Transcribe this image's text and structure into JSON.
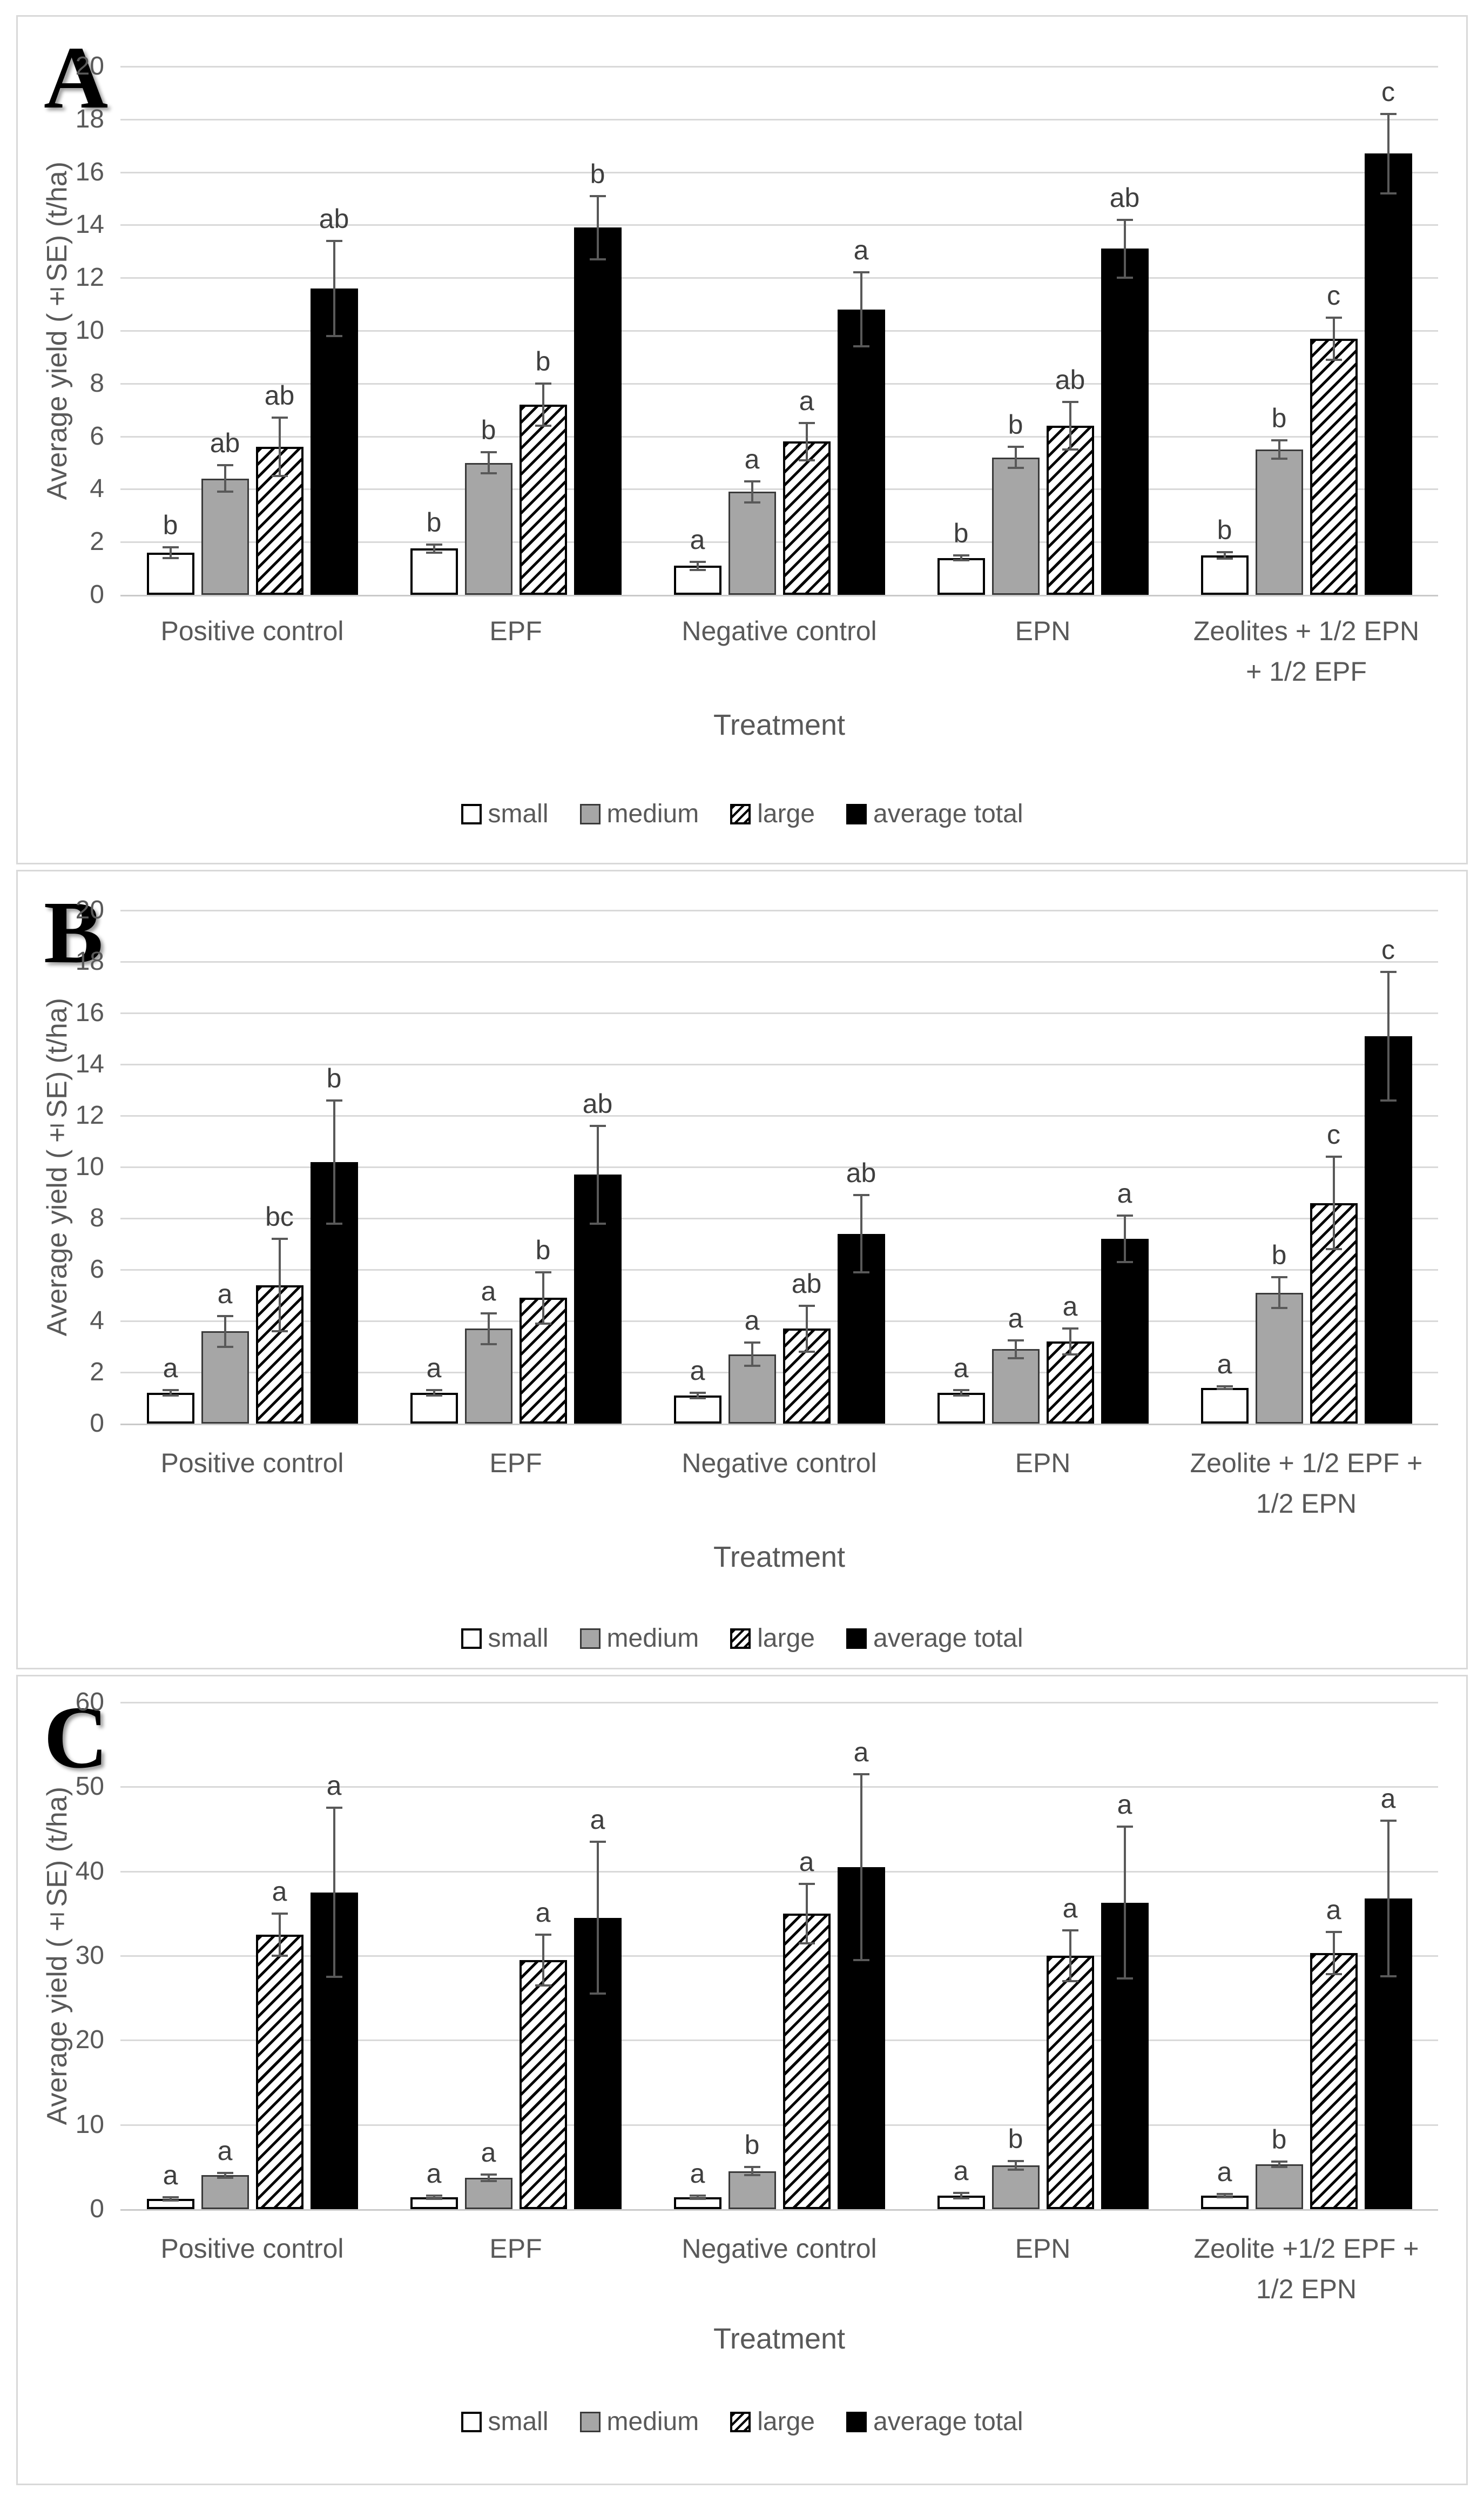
{
  "colors": {
    "bar_small_fill": "#ffffff",
    "bar_medium_fill": "#a6a6a6",
    "bar_large_hatch": "#000000",
    "bar_total_fill": "#000000",
    "gridline": "#d9d9d9",
    "axis_line": "#c9c9c9",
    "text": "#595959",
    "sig_letter": "#3f3f3f",
    "panel_border": "#d9d9d9"
  },
  "chart_data": [
    {
      "type": "bar",
      "panel": "A",
      "ylabel": "Average yield (±SE) (t/ha)",
      "xlabel": "Treatment",
      "ylim": [
        0,
        20
      ],
      "ytick_step": 2,
      "yticks": [
        0,
        2,
        4,
        6,
        8,
        10,
        12,
        14,
        16,
        18,
        20
      ],
      "grid": true,
      "legend_position": "bottom",
      "categories": [
        "Positive control",
        "EPF",
        "Negative control",
        "EPN",
        "Zeolites + 1/2 EPN + 1/2 EPF"
      ],
      "series": [
        {
          "name": "small",
          "values": [
            1.6,
            1.75,
            1.1,
            1.4,
            1.5
          ],
          "errors": [
            0.2,
            0.15,
            0.15,
            0.1,
            0.12
          ],
          "letters": [
            "b",
            "b",
            "a",
            "b",
            "b"
          ]
        },
        {
          "name": "medium",
          "values": [
            4.4,
            5.0,
            3.9,
            5.2,
            5.5
          ],
          "errors": [
            0.5,
            0.4,
            0.4,
            0.4,
            0.35
          ],
          "letters": [
            "ab",
            "b",
            "a",
            "b",
            "b"
          ]
        },
        {
          "name": "large",
          "values": [
            5.6,
            7.2,
            5.8,
            6.4,
            9.7
          ],
          "errors": [
            1.1,
            0.8,
            0.7,
            0.9,
            0.8
          ],
          "letters": [
            "ab",
            "b",
            "a",
            "ab",
            "c"
          ]
        },
        {
          "name": "average total",
          "values": [
            11.6,
            13.9,
            10.8,
            13.1,
            16.7
          ],
          "errors": [
            1.8,
            1.2,
            1.4,
            1.1,
            1.5
          ],
          "letters": [
            "ab",
            "b",
            "a",
            "ab",
            "c"
          ]
        }
      ]
    },
    {
      "type": "bar",
      "panel": "B",
      "ylabel": "Average yield (±SE) (t/ha)",
      "xlabel": "Treatment",
      "ylim": [
        0,
        20
      ],
      "ytick_step": 2,
      "yticks": [
        0,
        2,
        4,
        6,
        8,
        10,
        12,
        14,
        16,
        18,
        20
      ],
      "grid": true,
      "legend_position": "bottom",
      "categories": [
        "Positive control",
        "EPF",
        "Negative control",
        "EPN",
        "Zeolite + 1/2 EPF + 1/2 EPN"
      ],
      "series": [
        {
          "name": "small",
          "values": [
            1.2,
            1.2,
            1.1,
            1.2,
            1.4
          ],
          "errors": [
            0.1,
            0.1,
            0.1,
            0.1,
            0.05
          ],
          "letters": [
            "a",
            "a",
            "a",
            "a",
            "a"
          ]
        },
        {
          "name": "medium",
          "values": [
            3.6,
            3.7,
            2.7,
            2.9,
            5.1
          ],
          "errors": [
            0.6,
            0.6,
            0.45,
            0.35,
            0.6
          ],
          "letters": [
            "a",
            "a",
            "a",
            "a",
            "b"
          ]
        },
        {
          "name": "large",
          "values": [
            5.4,
            4.9,
            3.7,
            3.2,
            8.6
          ],
          "errors": [
            1.8,
            1.0,
            0.9,
            0.5,
            1.8
          ],
          "letters": [
            "bc",
            "b",
            "ab",
            "a",
            "c"
          ]
        },
        {
          "name": "average total",
          "values": [
            10.2,
            9.7,
            7.4,
            7.2,
            15.1
          ],
          "errors": [
            2.4,
            1.9,
            1.5,
            0.9,
            2.5
          ],
          "letters": [
            "b",
            "ab",
            "ab",
            "a",
            "c"
          ]
        }
      ]
    },
    {
      "type": "bar",
      "panel": "C",
      "ylabel": "Average yield (±SE) (t/ha)",
      "xlabel": "Treatment",
      "ylim": [
        0,
        60
      ],
      "ytick_step": 10,
      "yticks": [
        0,
        10,
        20,
        30,
        40,
        50,
        60
      ],
      "grid": true,
      "legend_position": "bottom",
      "categories": [
        "Positive control",
        "EPF",
        "Negative control",
        "EPN",
        "Zeolite +1/2 EPF + 1/2 EPN"
      ],
      "series": [
        {
          "name": "small",
          "values": [
            1.2,
            1.4,
            1.4,
            1.6,
            1.6
          ],
          "errors": [
            0.2,
            0.2,
            0.2,
            0.3,
            0.2
          ],
          "letters": [
            "a",
            "a",
            "a",
            "a",
            "a"
          ]
        },
        {
          "name": "medium",
          "values": [
            4.0,
            3.7,
            4.5,
            5.2,
            5.3
          ],
          "errors": [
            0.3,
            0.4,
            0.5,
            0.5,
            0.3
          ],
          "letters": [
            "a",
            "a",
            "b",
            "b",
            "b"
          ]
        },
        {
          "name": "large",
          "values": [
            32.5,
            29.5,
            35.0,
            30.0,
            30.3
          ],
          "errors": [
            2.5,
            3.0,
            3.5,
            3.0,
            2.5
          ],
          "letters": [
            "a",
            "a",
            "a",
            "a",
            "a"
          ]
        },
        {
          "name": "average total",
          "values": [
            37.5,
            34.5,
            40.5,
            36.3,
            36.8
          ],
          "errors": [
            10.0,
            9.0,
            11.0,
            9.0,
            9.2
          ],
          "letters": [
            "a",
            "a",
            "a",
            "a",
            "a"
          ]
        }
      ]
    }
  ]
}
